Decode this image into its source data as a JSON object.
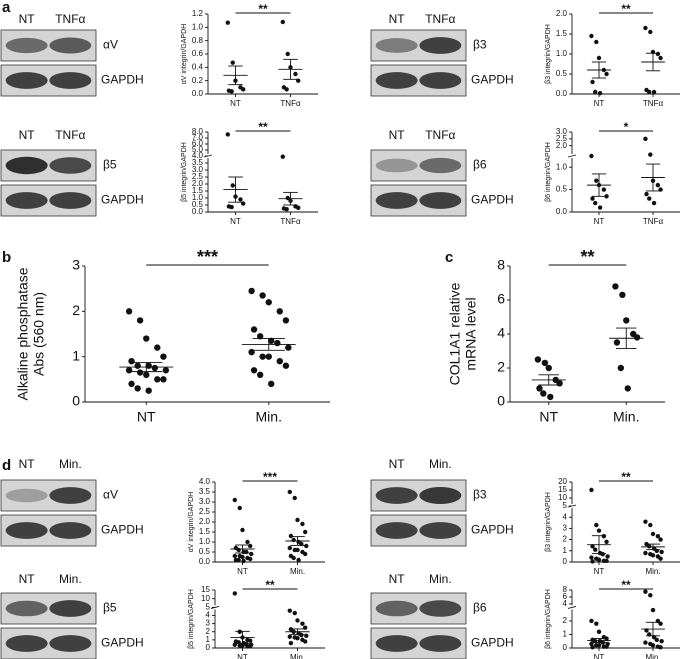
{
  "panels": [
    "a",
    "b",
    "c",
    "d"
  ],
  "blots": [
    {
      "lanes": [
        "NT",
        "TNFα"
      ],
      "protein": "αV",
      "control": "GAPDH"
    },
    {
      "lanes": [
        "NT",
        "TNFα"
      ],
      "protein": "β3",
      "control": "GAPDH"
    },
    {
      "lanes": [
        "NT",
        "TNFα"
      ],
      "protein": "β5",
      "control": "GAPDH"
    },
    {
      "lanes": [
        "NT",
        "TNFα"
      ],
      "protein": "β6",
      "control": "GAPDH"
    },
    {
      "lanes": [
        "NT",
        "Min."
      ],
      "protein": "αV",
      "control": "GAPDH"
    },
    {
      "lanes": [
        "NT",
        "Min."
      ],
      "protein": "β3",
      "control": "GAPDH"
    },
    {
      "lanes": [
        "NT",
        "Min."
      ],
      "protein": "β5",
      "control": "GAPDH"
    },
    {
      "lanes": [
        "NT",
        "Min."
      ],
      "protein": "β6",
      "control": "GAPDH"
    }
  ],
  "chart_data": [
    {
      "type": "dot",
      "ylabel": [
        "αV integrin/GAPDH"
      ],
      "categories": [
        "NT",
        "TNFα"
      ],
      "significance": "**",
      "ylim": [
        0,
        1.2
      ],
      "yticks": [
        {
          "value": 0,
          "label": "0.0"
        },
        0.2,
        0.4,
        0.6,
        0.8,
        {
          "value": 1,
          "label": "1.0"
        },
        1.2
      ],
      "groups": [
        {
          "values": [
            1.07,
            0.47,
            0.2,
            0.1,
            0.07,
            0.05,
            0.04
          ],
          "mean": 0.28,
          "sem": 0.14
        },
        {
          "values": [
            1.08,
            0.6,
            0.4,
            0.3,
            0.2,
            0.1,
            0.07
          ],
          "mean": 0.37,
          "sem": 0.15
        }
      ]
    },
    {
      "type": "dot",
      "ylabel": [
        "β3 integrin/GAPDH"
      ],
      "categories": [
        "NT",
        "TNFα"
      ],
      "significance": "**",
      "ylim": [
        0,
        2
      ],
      "yticks": [
        {
          "value": 0,
          "label": "0.0"
        },
        0.5,
        {
          "value": 1,
          "label": "1.0"
        },
        1.5,
        {
          "value": 2,
          "label": "2.0"
        }
      ],
      "groups": [
        {
          "values": [
            1.45,
            1.3,
            0.9,
            0.6,
            0.5,
            0.3,
            0.05,
            0.02
          ],
          "mean": 0.6,
          "sem": 0.2
        },
        {
          "values": [
            1.65,
            1.55,
            1.05,
            1.0,
            0.9,
            0.1,
            0.05,
            0.05
          ],
          "mean": 0.8,
          "sem": 0.22
        }
      ]
    },
    {
      "type": "dot",
      "ylabel": [
        "β5 integrin/GAPDH"
      ],
      "categories": [
        "NT",
        "TNFα"
      ],
      "significance": "**",
      "ylim": [
        0,
        8
      ],
      "ybreak": 4,
      "yticks": [
        {
          "value": 0,
          "label": "0.0"
        },
        0.5,
        {
          "value": 1,
          "label": "1.0"
        },
        1.5,
        {
          "value": 2,
          "label": "2.0"
        },
        2.5,
        {
          "value": 3,
          "label": "3.0"
        },
        3.5,
        {
          "value": 4,
          "label": "4.0"
        },
        {
          "value": 5,
          "label": "5.0"
        },
        {
          "value": 6,
          "label": "6.0"
        },
        {
          "value": 7,
          "label": "7.0"
        },
        {
          "value": 8,
          "label": "8.0"
        }
      ],
      "groups": [
        {
          "values": [
            7.6,
            1.9,
            1.1,
            0.9,
            0.6,
            0.4,
            0.35
          ],
          "mean": 1.6,
          "sem": 0.9
        },
        {
          "values": [
            3.95,
            1.0,
            0.8,
            0.4,
            0.3,
            0.25,
            0.2
          ],
          "mean": 0.95,
          "sem": 0.45
        }
      ]
    },
    {
      "type": "dot",
      "ylabel": [
        "β6 integrin/GAPDH"
      ],
      "categories": [
        "NT",
        "TNFα"
      ],
      "significance": "*",
      "ylim": [
        0,
        3
      ],
      "ybreak": 1.25,
      "yticks": [
        {
          "value": 0,
          "label": "0.0"
        },
        0.5,
        {
          "value": 1,
          "label": "1.0"
        },
        {
          "value": 2,
          "label": "2.0"
        },
        2.5,
        {
          "value": 3,
          "label": "3.0"
        }
      ],
      "groups": [
        {
          "values": [
            1.25,
            0.7,
            0.6,
            0.5,
            0.35,
            0.3,
            0.2,
            0.1
          ],
          "mean": 0.6,
          "sem": 0.25
        },
        {
          "values": [
            2.5,
            1.35,
            0.7,
            0.6,
            0.5,
            0.4,
            0.3,
            0.2
          ],
          "mean": 0.77,
          "sem": 0.3
        }
      ]
    },
    {
      "type": "dot",
      "ylabel": [
        "Alkaline phosphatase",
        "Abs (560 nm)"
      ],
      "categories": [
        "NT",
        "Min."
      ],
      "significance": "***",
      "ylim": [
        0,
        3
      ],
      "yticks": [
        0,
        1,
        2,
        3
      ],
      "groups": [
        {
          "values": [
            2.0,
            1.8,
            1.4,
            1.2,
            1.0,
            0.9,
            0.8,
            0.8,
            0.75,
            0.7,
            0.7,
            0.65,
            0.6,
            0.5,
            0.5,
            0.4,
            0.3,
            0.25
          ],
          "mean": 0.77,
          "sem": 0.1
        },
        {
          "values": [
            2.45,
            2.35,
            2.2,
            2.0,
            1.8,
            1.6,
            1.45,
            1.35,
            1.3,
            1.2,
            1.1,
            1.0,
            1.0,
            0.9,
            0.8,
            0.7,
            0.6,
            0.4
          ],
          "mean": 1.27,
          "sem": 0.13
        }
      ]
    },
    {
      "type": "dot",
      "ylabel": [
        "COL1A1 relative",
        "mRNA level"
      ],
      "categories": [
        "NT",
        "Min."
      ],
      "significance": "**",
      "ylim": [
        0,
        8
      ],
      "yticks": [
        0,
        2,
        4,
        6,
        8
      ],
      "groups": [
        {
          "values": [
            2.5,
            2.3,
            2.0,
            1.3,
            1.1,
            0.8,
            0.5,
            0.3
          ],
          "mean": 1.3,
          "sem": 0.3
        },
        {
          "values": [
            6.8,
            6.3,
            4.8,
            4.0,
            3.8,
            3.5,
            2.0,
            0.8
          ],
          "mean": 3.75,
          "sem": 0.6
        }
      ]
    },
    {
      "type": "dot",
      "ylabel": [
        "αV integrin/GAPDH"
      ],
      "categories": [
        "NT",
        "Min."
      ],
      "significance": "***",
      "ylim": [
        0,
        4
      ],
      "yticks": [
        {
          "value": 0,
          "label": "0.0"
        },
        0.5,
        {
          "value": 1,
          "label": "1.0"
        },
        1.5,
        {
          "value": 2,
          "label": "2.0"
        },
        2.5,
        {
          "value": 3,
          "label": "3.0"
        },
        3.5,
        {
          "value": 4,
          "label": "4.0"
        }
      ],
      "groups": [
        {
          "values": [
            3.1,
            2.7,
            1.6,
            1.0,
            0.8,
            0.7,
            0.6,
            0.5,
            0.5,
            0.4,
            0.3,
            0.3,
            0.25,
            0.2,
            0.15,
            0.1,
            0.1,
            0.05
          ],
          "mean": 0.65,
          "sem": 0.2
        },
        {
          "values": [
            3.5,
            3.2,
            2.1,
            1.9,
            1.5,
            1.3,
            1.1,
            1.0,
            0.9,
            0.8,
            0.7,
            0.6,
            0.6,
            0.5,
            0.4,
            0.3,
            0.2,
            0.1
          ],
          "mean": 1.05,
          "sem": 0.22
        }
      ]
    },
    {
      "type": "dot",
      "ylabel": [
        "β3 integrin/GAPDH"
      ],
      "categories": [
        "NT",
        "Min."
      ],
      "significance": "**",
      "ylim": [
        0,
        20
      ],
      "ybreak": 5,
      "yticks": [
        0,
        1,
        2,
        3,
        4,
        5,
        10,
        15,
        20
      ],
      "groups": [
        {
          "values": [
            15,
            3.3,
            2.8,
            2.3,
            1.8,
            1.4,
            1.1,
            0.8,
            0.7,
            0.5,
            0.4,
            0.3,
            0.2,
            0.1,
            0.1,
            0.05
          ],
          "mean": 1.55,
          "sem": 0.8
        },
        {
          "values": [
            3.6,
            3.3,
            2.5,
            2.3,
            2.0,
            1.6,
            1.4,
            1.2,
            1.0,
            0.9,
            0.8,
            0.7,
            0.6,
            0.5,
            0.3
          ],
          "mean": 1.35,
          "sem": 0.25
        }
      ]
    },
    {
      "type": "dot",
      "ylabel": [
        "β5 integrin/GAPDH"
      ],
      "categories": [
        "NT",
        "Min."
      ],
      "significance": "**",
      "ylim": [
        0,
        15
      ],
      "ybreak": 5,
      "yticks": [
        0,
        1,
        2,
        3,
        4,
        5,
        10,
        15
      ],
      "groups": [
        {
          "values": [
            13,
            2.0,
            1.3,
            1.0,
            0.9,
            0.8,
            0.7,
            0.6,
            0.5,
            0.4,
            0.4,
            0.3,
            0.3,
            0.2,
            0.2
          ],
          "mean": 1.3,
          "sem": 0.75
        },
        {
          "values": [
            4.6,
            4.3,
            3.4,
            3.0,
            2.5,
            2.3,
            2.0,
            1.8,
            1.6,
            1.5,
            1.4,
            1.3,
            1.2,
            1.0,
            0.8,
            0.6
          ],
          "mean": 2.0,
          "sem": 0.35
        }
      ]
    },
    {
      "type": "dot",
      "ylabel": [
        "β6 integrin/GAPDH"
      ],
      "categories": [
        "NT",
        "Min."
      ],
      "significance": "**",
      "ylim": [
        0,
        8
      ],
      "ybreak": 3,
      "yticks": [
        0,
        1,
        2,
        4,
        6,
        8
      ],
      "groups": [
        {
          "values": [
            2.0,
            1.8,
            1.2,
            0.8,
            0.7,
            0.6,
            0.5,
            0.5,
            0.4,
            0.3,
            0.3,
            0.2,
            0.2,
            0.1,
            0.1,
            0.05
          ],
          "mean": 0.55,
          "sem": 0.15
        },
        {
          "values": [
            7.5,
            6.5,
            2.8,
            2.0,
            1.8,
            1.3,
            1.0,
            0.8,
            0.6,
            0.5,
            0.4,
            0.3,
            0.2,
            0.1,
            0.05
          ],
          "mean": 1.4,
          "sem": 0.5
        }
      ]
    }
  ]
}
